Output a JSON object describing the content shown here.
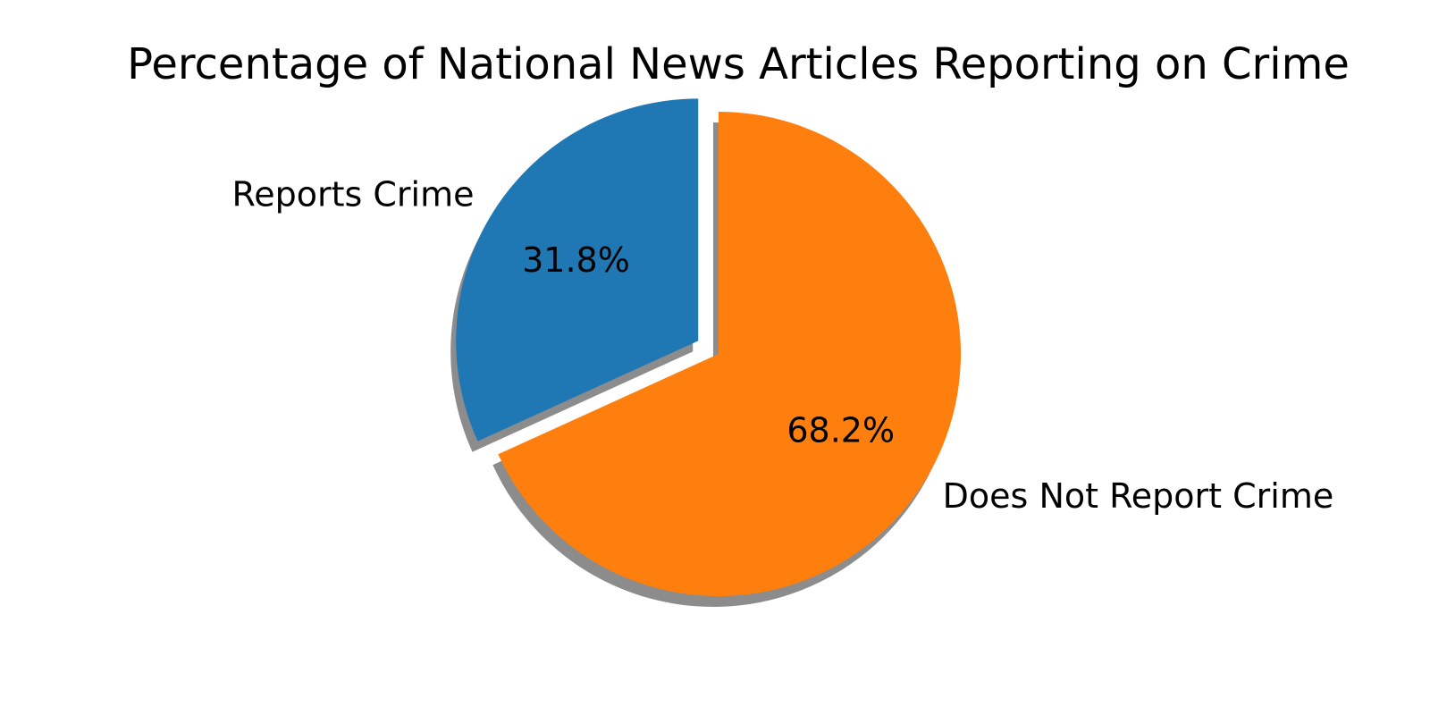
{
  "chart_data": {
    "type": "pie",
    "title": "Percentage of National News Articles Reporting on Crime",
    "start_angle_deg": 90,
    "direction": "counterclockwise",
    "shadow": true,
    "slices": [
      {
        "label": "Reports Crime",
        "value": 31.8,
        "pct_text": "31.8%",
        "color": "#1f77b4",
        "explode": 0.1
      },
      {
        "label": "Does Not Report Crime",
        "value": 68.2,
        "pct_text": "68.2%",
        "color": "#ff7f0e",
        "explode": 0
      }
    ]
  }
}
